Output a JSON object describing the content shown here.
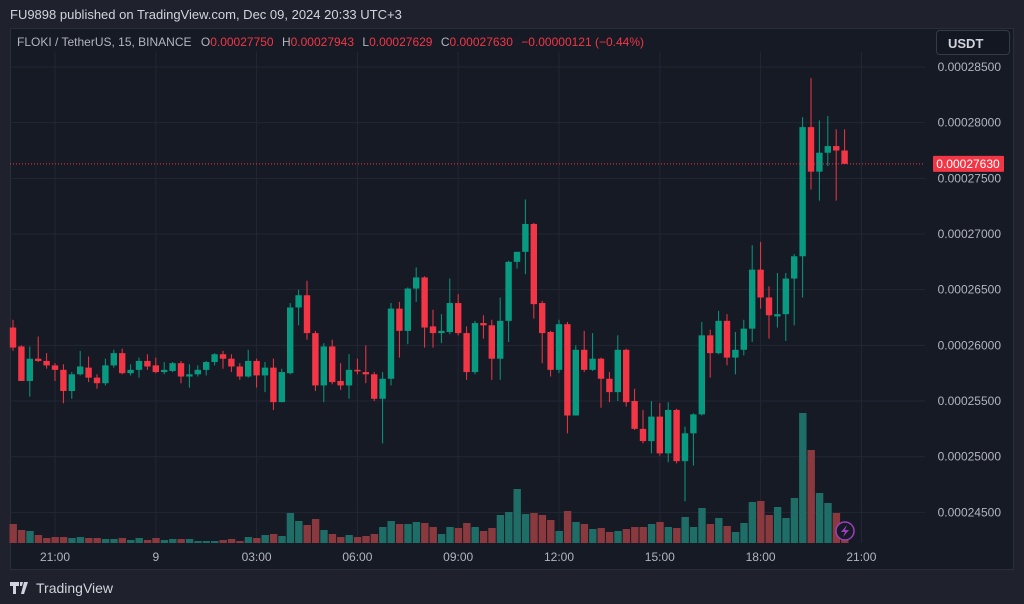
{
  "publish_line": "FU9898 published on TradingView.com, Dec 09, 2024 20:33 UTC+3",
  "legend": {
    "symbol": "FLOKI / TetherUS, 15, BINANCE",
    "o_label": "O",
    "o": "0.00027750",
    "h_label": "H",
    "h": "0.00027943",
    "l_label": "L",
    "l": "0.00027629",
    "c_label": "C",
    "c": "0.00027630",
    "change": "−0.00000121 (−0.44%)"
  },
  "currency_button": "USDT",
  "brand": "TradingView",
  "colors": {
    "up": "#089981",
    "down": "#f23645",
    "vol_up": "#1e6e67",
    "vol_down": "#8a3a3e",
    "background": "#161a25",
    "grid": "#232733",
    "alert_icon": "#9c3fbf"
  },
  "chart_data": {
    "type": "candlestick",
    "interval": "15",
    "price_ticks": [
      "0.00028500",
      "0.00028000",
      "0.00027500",
      "0.00027000",
      "0.00026500",
      "0.00026000",
      "0.00025500",
      "0.00025000",
      "0.00024500"
    ],
    "time_ticks": [
      "21:00",
      "9",
      "03:00",
      "06:00",
      "09:00",
      "12:00",
      "15:00",
      "18:00",
      "21:00"
    ],
    "last_price": "0.00027630",
    "ylim": [
      0.000243,
      0.000288
    ],
    "candles_ohlc": [
      [
        0.0002616,
        0.0002623,
        0.0002595,
        0.0002598
      ],
      [
        0.0002599,
        0.00026,
        0.0002568,
        0.0002568
      ],
      [
        0.0002568,
        0.0002599,
        0.0002554,
        0.0002588
      ],
      [
        0.0002588,
        0.0002608,
        0.0002585,
        0.0002586
      ],
      [
        0.0002586,
        0.0002593,
        0.0002579,
        0.0002582
      ],
      [
        0.0002582,
        0.0002584,
        0.0002568,
        0.0002578
      ],
      [
        0.0002578,
        0.0002583,
        0.0002548,
        0.0002559
      ],
      [
        0.0002559,
        0.0002576,
        0.0002552,
        0.0002574
      ],
      [
        0.0002574,
        0.0002595,
        0.0002573,
        0.0002581
      ],
      [
        0.000258,
        0.000259,
        0.0002567,
        0.0002571
      ],
      [
        0.0002571,
        0.0002574,
        0.0002561,
        0.0002566
      ],
      [
        0.0002566,
        0.0002588,
        0.0002564,
        0.0002582
      ],
      [
        0.0002582,
        0.0002596,
        0.000258,
        0.0002593
      ],
      [
        0.0002593,
        0.0002597,
        0.0002574,
        0.0002575
      ],
      [
        0.0002575,
        0.0002583,
        0.0002573,
        0.0002578
      ],
      [
        0.0002578,
        0.0002589,
        0.0002571,
        0.0002586
      ],
      [
        0.0002586,
        0.0002592,
        0.0002578,
        0.0002581
      ],
      [
        0.0002582,
        0.0002589,
        0.0002575,
        0.0002576
      ],
      [
        0.0002576,
        0.0002585,
        0.0002574,
        0.0002578
      ],
      [
        0.0002577,
        0.0002585,
        0.0002576,
        0.0002584
      ],
      [
        0.0002584,
        0.0002586,
        0.0002566,
        0.0002572
      ],
      [
        0.0002572,
        0.0002583,
        0.0002562,
        0.0002574
      ],
      [
        0.0002574,
        0.0002582,
        0.0002572,
        0.0002578
      ],
      [
        0.0002578,
        0.0002586,
        0.0002573,
        0.0002585
      ],
      [
        0.0002585,
        0.0002593,
        0.0002582,
        0.0002592
      ],
      [
        0.0002592,
        0.0002595,
        0.0002579,
        0.0002588
      ],
      [
        0.0002588,
        0.0002592,
        0.0002576,
        0.0002581
      ],
      [
        0.0002581,
        0.0002584,
        0.0002569,
        0.0002572
      ],
      [
        0.0002572,
        0.0002596,
        0.0002571,
        0.0002586
      ],
      [
        0.0002586,
        0.0002588,
        0.0002562,
        0.0002573
      ],
      [
        0.0002573,
        0.0002585,
        0.0002558,
        0.000258
      ],
      [
        0.000258,
        0.0002588,
        0.0002542,
        0.0002549
      ],
      [
        0.0002549,
        0.0002579,
        0.0002549,
        0.0002576
      ],
      [
        0.0002575,
        0.0002638,
        0.0002574,
        0.0002634
      ],
      [
        0.0002634,
        0.000265,
        0.0002618,
        0.0002645
      ],
      [
        0.0002645,
        0.0002658,
        0.0002605,
        0.0002611
      ],
      [
        0.0002611,
        0.0002613,
        0.0002559,
        0.0002564
      ],
      [
        0.0002564,
        0.0002602,
        0.0002549,
        0.0002599
      ],
      [
        0.0002599,
        0.0002605,
        0.0002565,
        0.0002567
      ],
      [
        0.0002568,
        0.0002584,
        0.000256,
        0.0002564
      ],
      [
        0.0002564,
        0.0002592,
        0.0002552,
        0.0002578
      ],
      [
        0.0002578,
        0.0002588,
        0.0002574,
        0.0002577
      ],
      [
        0.0002576,
        0.00026,
        0.0002566,
        0.0002574
      ],
      [
        0.0002574,
        0.0002576,
        0.000255,
        0.0002552
      ],
      [
        0.0002552,
        0.0002576,
        0.0002512,
        0.000257
      ],
      [
        0.000257,
        0.0002638,
        0.0002564,
        0.0002633
      ],
      [
        0.0002633,
        0.0002639,
        0.0002589,
        0.0002613
      ],
      [
        0.0002613,
        0.0002652,
        0.0002601,
        0.0002651
      ],
      [
        0.0002651,
        0.000267,
        0.0002639,
        0.0002661
      ],
      [
        0.0002661,
        0.0002662,
        0.0002598,
        0.0002616
      ],
      [
        0.0002617,
        0.0002632,
        0.0002598,
        0.0002611
      ],
      [
        0.0002611,
        0.0002628,
        0.0002602,
        0.0002613
      ],
      [
        0.0002612,
        0.000266,
        0.000261,
        0.0002638
      ],
      [
        0.0002638,
        0.0002646,
        0.0002609,
        0.0002611
      ],
      [
        0.0002611,
        0.0002617,
        0.0002569,
        0.0002576
      ],
      [
        0.0002576,
        0.0002622,
        0.0002574,
        0.000262
      ],
      [
        0.000262,
        0.0002627,
        0.0002606,
        0.0002618
      ],
      [
        0.0002618,
        0.0002623,
        0.0002569,
        0.0002588
      ],
      [
        0.0002588,
        0.0002643,
        0.0002569,
        0.0002622
      ],
      [
        0.0002622,
        0.0002676,
        0.0002603,
        0.0002675
      ],
      [
        0.0002675,
        0.0002684,
        0.0002669,
        0.0002684
      ],
      [
        0.0002684,
        0.0002731,
        0.0002664,
        0.0002709
      ],
      [
        0.0002709,
        0.000271,
        0.0002624,
        0.0002637
      ],
      [
        0.0002638,
        0.000264,
        0.0002584,
        0.0002611
      ],
      [
        0.0002612,
        0.0002613,
        0.0002572,
        0.0002578
      ],
      [
        0.0002578,
        0.0002623,
        0.0002575,
        0.0002619
      ],
      [
        0.0002619,
        0.0002621,
        0.0002521,
        0.0002537
      ],
      [
        0.0002537,
        0.00026,
        0.0002537,
        0.0002596
      ],
      [
        0.0002596,
        0.0002613,
        0.0002576,
        0.0002578
      ],
      [
        0.0002578,
        0.0002611,
        0.0002577,
        0.0002588
      ],
      [
        0.0002588,
        0.0002589,
        0.0002544,
        0.000257
      ],
      [
        0.000257,
        0.0002576,
        0.0002549,
        0.0002558
      ],
      [
        0.0002558,
        0.0002609,
        0.000255,
        0.0002596
      ],
      [
        0.0002596,
        0.0002597,
        0.0002545,
        0.0002549
      ],
      [
        0.000255,
        0.0002561,
        0.0002524,
        0.0002525
      ],
      [
        0.0002525,
        0.0002542,
        0.0002512,
        0.0002514
      ],
      [
        0.0002514,
        0.000255,
        0.0002503,
        0.0002536
      ],
      [
        0.0002536,
        0.0002548,
        0.0002501,
        0.0002503
      ],
      [
        0.0002503,
        0.0002549,
        0.0002495,
        0.0002542
      ],
      [
        0.0002542,
        0.0002543,
        0.0002494,
        0.0002496
      ],
      [
        0.0002496,
        0.0002527,
        0.000246,
        0.0002521
      ],
      [
        0.0002521,
        0.0002539,
        0.0002492,
        0.0002538
      ],
      [
        0.0002538,
        0.0002621,
        0.0002537,
        0.0002609
      ],
      [
        0.0002609,
        0.0002614,
        0.0002571,
        0.0002593
      ],
      [
        0.0002593,
        0.0002631,
        0.0002592,
        0.0002622
      ],
      [
        0.0002622,
        0.0002628,
        0.0002582,
        0.0002589
      ],
      [
        0.0002589,
        0.0002612,
        0.0002574,
        0.0002596
      ],
      [
        0.0002596,
        0.0002623,
        0.0002591,
        0.0002615
      ],
      [
        0.0002615,
        0.000269,
        0.0002603,
        0.0002668
      ],
      [
        0.0002668,
        0.0002693,
        0.0002633,
        0.0002643
      ],
      [
        0.0002643,
        0.0002653,
        0.0002606,
        0.0002627
      ],
      [
        0.0002626,
        0.0002665,
        0.0002616,
        0.0002628
      ],
      [
        0.0002628,
        0.0002665,
        0.0002604,
        0.000266
      ],
      [
        0.000266,
        0.0002682,
        0.0002618,
        0.000268
      ],
      [
        0.000268,
        0.0002805,
        0.0002643,
        0.0002796
      ],
      [
        0.0002796,
        0.000284,
        0.000274,
        0.0002756
      ],
      [
        0.0002756,
        0.0002802,
        0.000273,
        0.0002773
      ],
      [
        0.0002773,
        0.0002806,
        0.0002761,
        0.0002779
      ],
      [
        0.0002779,
        0.0002794,
        0.000273,
        0.0002775
      ],
      [
        0.0002775,
        0.0002794,
        0.0002763,
        0.0002763
      ]
    ],
    "volume_relative": [
      19,
      13,
      12,
      8,
      5,
      6,
      6,
      5,
      6,
      5,
      5,
      4,
      4,
      5,
      3,
      5,
      3,
      5,
      3,
      4,
      4,
      4,
      2,
      2,
      2,
      3,
      4,
      2,
      6,
      5,
      8,
      9,
      7,
      30,
      22,
      18,
      24,
      13,
      9,
      6,
      8,
      6,
      7,
      9,
      16,
      22,
      19,
      19,
      21,
      20,
      16,
      9,
      16,
      15,
      20,
      16,
      12,
      15,
      28,
      31,
      54,
      29,
      30,
      28,
      23,
      12,
      32,
      21,
      19,
      14,
      15,
      11,
      12,
      14,
      16,
      16,
      19,
      21,
      16,
      15,
      26,
      16,
      35,
      19,
      25,
      17,
      11,
      20,
      41,
      42,
      28,
      36,
      25,
      45,
      130,
      93,
      50,
      40,
      30,
      6
    ]
  }
}
